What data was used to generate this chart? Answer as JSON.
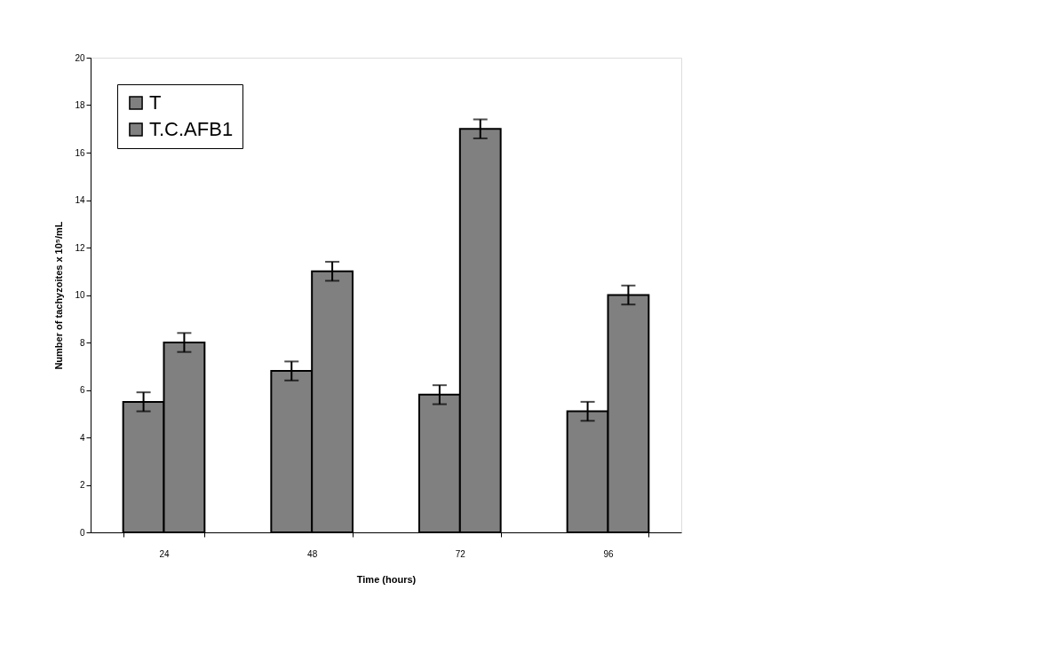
{
  "chart_data": {
    "type": "bar",
    "xlabel": "Time (hours)",
    "ylabel": "Number of tachyzoites x 10⁵/mL",
    "categories": [
      "24",
      "48",
      "72",
      "96"
    ],
    "series": [
      {
        "name": "T",
        "color": "#808080",
        "values": [
          5.5,
          6.8,
          5.8,
          5.1
        ],
        "errors": [
          0.4,
          0.4,
          0.4,
          0.4
        ]
      },
      {
        "name": "T.C.AFB1",
        "color": "#808080",
        "values": [
          8,
          11,
          17,
          10
        ],
        "errors": [
          0.4,
          0.4,
          0.4,
          0.4
        ]
      }
    ],
    "ylim": [
      0,
      20
    ],
    "yticks": [
      0,
      2,
      4,
      6,
      8,
      10,
      12,
      14,
      16,
      18,
      20
    ],
    "grid": false,
    "legend": "top left"
  }
}
